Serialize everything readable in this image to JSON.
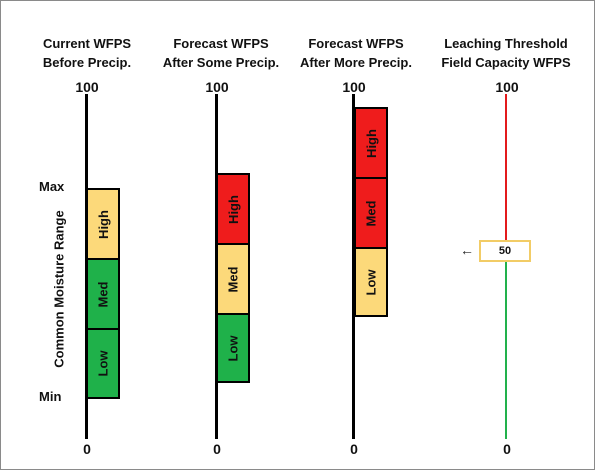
{
  "columns": [
    {
      "header_line1": "Current WFPS",
      "header_line2": "Before Precip.",
      "top_label": "100",
      "bottom_label": "0",
      "boxes": [
        {
          "label": "High",
          "color": "#fcd97a"
        },
        {
          "label": "Med",
          "color": "#1fb14a"
        },
        {
          "label": "Low",
          "color": "#1fb14a"
        }
      ]
    },
    {
      "header_line1": "Forecast WFPS",
      "header_line2": "After Some Precip.",
      "top_label": "100",
      "bottom_label": "0",
      "boxes": [
        {
          "label": "High",
          "color": "#ef1c1c"
        },
        {
          "label": "Med",
          "color": "#fcd97a"
        },
        {
          "label": "Low",
          "color": "#1fb14a"
        }
      ]
    },
    {
      "header_line1": "Forecast WFPS",
      "header_line2": "After More Precip.",
      "top_label": "100",
      "bottom_label": "0",
      "boxes": [
        {
          "label": "High",
          "color": "#ef1c1c"
        },
        {
          "label": "Med",
          "color": "#ef1c1c"
        },
        {
          "label": "Low",
          "color": "#fcd97a"
        }
      ]
    },
    {
      "header_line1": "Leaching Threshold",
      "header_line2": "Field Capacity WFPS",
      "top_label": "100",
      "bottom_label": "0",
      "threshold_value": "50",
      "upper_color": "#e31a1c",
      "lower_color": "#22b14c"
    }
  ],
  "range_labels": {
    "max": "Max",
    "min": "Min",
    "side": "Common Moisture Range"
  },
  "icons": {
    "threshold_arrow": "left-arrow-icon"
  }
}
